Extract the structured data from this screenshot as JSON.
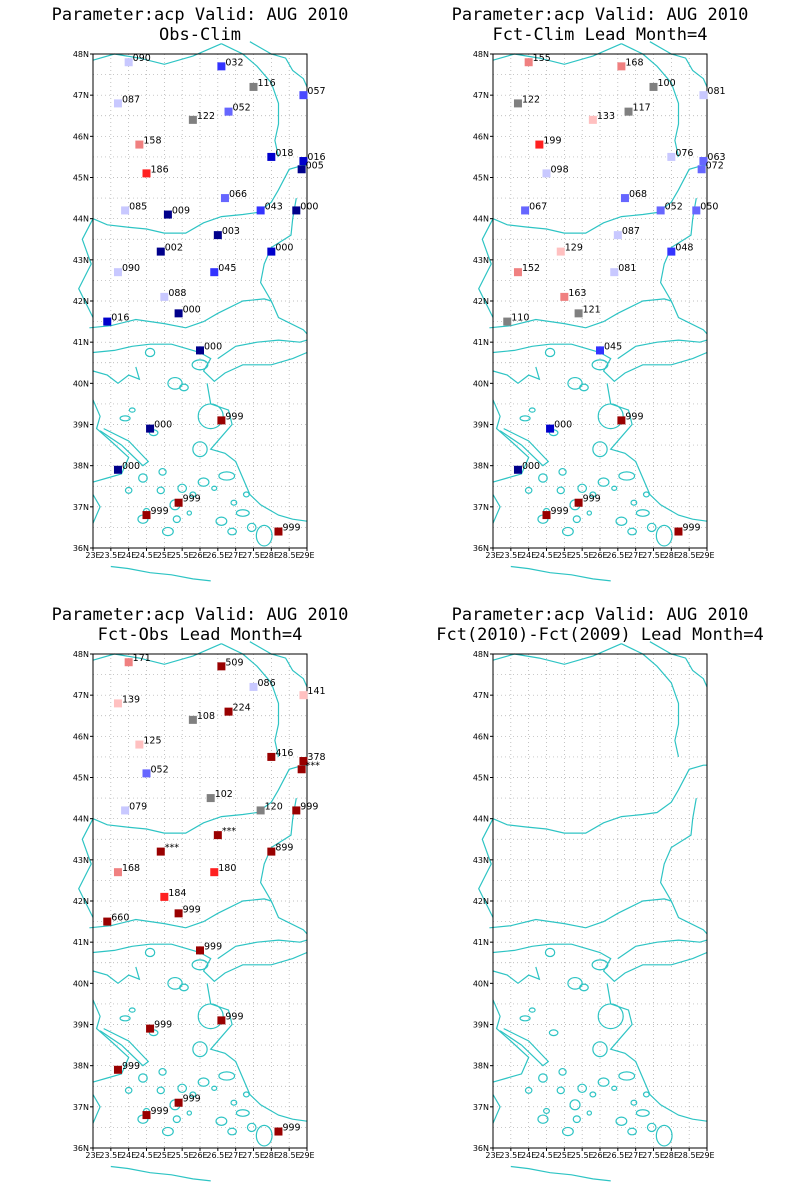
{
  "axes": {
    "lon_ticks": [
      "23E",
      "23.5E",
      "24E",
      "24.5E",
      "25E",
      "25.5E",
      "26E",
      "26.5E",
      "27E",
      "27.5E",
      "28E",
      "28.5E",
      "29E"
    ],
    "lat_ticks": [
      "36N",
      "37N",
      "38N",
      "39N",
      "40N",
      "41N",
      "42N",
      "43N",
      "44N",
      "45N",
      "46N",
      "47N",
      "48N"
    ]
  },
  "colors": {
    "coast": "#2ec4c4",
    "grid": "#aaaaaa"
  },
  "panels": [
    {
      "id": "obs-clim",
      "title1": "Parameter:acp Valid: AUG 2010",
      "title2": "Obs-Clim",
      "points": [
        {
          "lon": 24.0,
          "lat": 47.8,
          "label": "090",
          "color": "#c8c8ff"
        },
        {
          "lon": 26.6,
          "lat": 47.7,
          "label": "032",
          "color": "#3333ff"
        },
        {
          "lon": 27.5,
          "lat": 47.2,
          "label": "116",
          "color": "#808080"
        },
        {
          "lon": 28.9,
          "lat": 47.0,
          "label": "057",
          "color": "#4a4aff"
        },
        {
          "lon": 23.7,
          "lat": 46.8,
          "label": "087",
          "color": "#c8c8ff"
        },
        {
          "lon": 25.8,
          "lat": 46.4,
          "label": "122",
          "color": "#808080"
        },
        {
          "lon": 26.8,
          "lat": 46.6,
          "label": "052",
          "color": "#6666ff"
        },
        {
          "lon": 24.3,
          "lat": 45.8,
          "label": "158",
          "color": "#f08080"
        },
        {
          "lon": 28.0,
          "lat": 45.5,
          "label": "018",
          "color": "#0000cc"
        },
        {
          "lon": 28.9,
          "lat": 45.4,
          "label": "016",
          "color": "#0000cc"
        },
        {
          "lon": 28.85,
          "lat": 45.2,
          "label": "005",
          "color": "#00008b"
        },
        {
          "lon": 24.5,
          "lat": 45.1,
          "label": "186",
          "color": "#ff2020"
        },
        {
          "lon": 26.7,
          "lat": 44.5,
          "label": "066",
          "color": "#6666ff"
        },
        {
          "lon": 23.9,
          "lat": 44.2,
          "label": "085",
          "color": "#c8c8ff"
        },
        {
          "lon": 25.1,
          "lat": 44.1,
          "label": "009",
          "color": "#00008b"
        },
        {
          "lon": 27.7,
          "lat": 44.2,
          "label": "043",
          "color": "#3333ff"
        },
        {
          "lon": 28.7,
          "lat": 44.2,
          "label": "000",
          "color": "#00008b"
        },
        {
          "lon": 26.5,
          "lat": 43.6,
          "label": "003",
          "color": "#00008b"
        },
        {
          "lon": 24.9,
          "lat": 43.2,
          "label": "002",
          "color": "#00008b"
        },
        {
          "lon": 28.0,
          "lat": 43.2,
          "label": "000",
          "color": "#0000cc"
        },
        {
          "lon": 23.7,
          "lat": 42.7,
          "label": "090",
          "color": "#c8c8ff"
        },
        {
          "lon": 26.4,
          "lat": 42.7,
          "label": "045",
          "color": "#3333ff"
        },
        {
          "lon": 25.0,
          "lat": 42.1,
          "label": "088",
          "color": "#c8c8ff"
        },
        {
          "lon": 25.4,
          "lat": 41.7,
          "label": "000",
          "color": "#00008b"
        },
        {
          "lon": 23.4,
          "lat": 41.5,
          "label": "016",
          "color": "#0000cc"
        },
        {
          "lon": 26.0,
          "lat": 40.8,
          "label": "000",
          "color": "#00008b"
        },
        {
          "lon": 26.6,
          "lat": 39.1,
          "label": "999",
          "color": "#990000"
        },
        {
          "lon": 24.6,
          "lat": 38.9,
          "label": "000",
          "color": "#00008b"
        },
        {
          "lon": 23.7,
          "lat": 37.9,
          "label": "000",
          "color": "#00008b"
        },
        {
          "lon": 25.4,
          "lat": 37.1,
          "label": "999",
          "color": "#990000"
        },
        {
          "lon": 24.5,
          "lat": 36.8,
          "label": "999",
          "color": "#990000"
        },
        {
          "lon": 28.2,
          "lat": 36.4,
          "label": "999",
          "color": "#990000"
        }
      ]
    },
    {
      "id": "fct-clim",
      "title1": "Parameter:acp Valid: AUG 2010",
      "title2": "Fct-Clim Lead Month=4",
      "points": [
        {
          "lon": 24.0,
          "lat": 47.8,
          "label": "155",
          "color": "#f08080"
        },
        {
          "lon": 26.6,
          "lat": 47.7,
          "label": "168",
          "color": "#f08080"
        },
        {
          "lon": 27.5,
          "lat": 47.2,
          "label": "100",
          "color": "#808080"
        },
        {
          "lon": 28.9,
          "lat": 47.0,
          "label": "081",
          "color": "#c8c8ff"
        },
        {
          "lon": 23.7,
          "lat": 46.8,
          "label": "122",
          "color": "#808080"
        },
        {
          "lon": 25.8,
          "lat": 46.4,
          "label": "133",
          "color": "#ffc0c0"
        },
        {
          "lon": 26.8,
          "lat": 46.6,
          "label": "117",
          "color": "#808080"
        },
        {
          "lon": 24.3,
          "lat": 45.8,
          "label": "199",
          "color": "#ff2020"
        },
        {
          "lon": 28.0,
          "lat": 45.5,
          "label": "076",
          "color": "#c8c8ff"
        },
        {
          "lon": 28.9,
          "lat": 45.4,
          "label": "063",
          "color": "#6666ff"
        },
        {
          "lon": 28.85,
          "lat": 45.2,
          "label": "072",
          "color": "#6666ff"
        },
        {
          "lon": 24.5,
          "lat": 45.1,
          "label": "098",
          "color": "#c8c8ff"
        },
        {
          "lon": 26.7,
          "lat": 44.5,
          "label": "068",
          "color": "#6666ff"
        },
        {
          "lon": 23.9,
          "lat": 44.2,
          "label": "067",
          "color": "#6666ff"
        },
        {
          "lon": 27.7,
          "lat": 44.2,
          "label": "052",
          "color": "#6666ff"
        },
        {
          "lon": 28.7,
          "lat": 44.2,
          "label": "050",
          "color": "#6666ff"
        },
        {
          "lon": 26.5,
          "lat": 43.6,
          "label": "087",
          "color": "#c8c8ff"
        },
        {
          "lon": 24.9,
          "lat": 43.2,
          "label": "129",
          "color": "#ffc0c0"
        },
        {
          "lon": 28.0,
          "lat": 43.2,
          "label": "048",
          "color": "#3333ff"
        },
        {
          "lon": 23.7,
          "lat": 42.7,
          "label": "152",
          "color": "#f08080"
        },
        {
          "lon": 26.4,
          "lat": 42.7,
          "label": "081",
          "color": "#c8c8ff"
        },
        {
          "lon": 25.0,
          "lat": 42.1,
          "label": "163",
          "color": "#f08080"
        },
        {
          "lon": 25.4,
          "lat": 41.7,
          "label": "121",
          "color": "#808080"
        },
        {
          "lon": 23.4,
          "lat": 41.5,
          "label": "110",
          "color": "#808080"
        },
        {
          "lon": 26.0,
          "lat": 40.8,
          "label": "045",
          "color": "#3333ff"
        },
        {
          "lon": 26.6,
          "lat": 39.1,
          "label": "999",
          "color": "#990000"
        },
        {
          "lon": 24.6,
          "lat": 38.9,
          "label": "000",
          "color": "#0000cc"
        },
        {
          "lon": 23.7,
          "lat": 37.9,
          "label": "000",
          "color": "#00008b"
        },
        {
          "lon": 25.4,
          "lat": 37.1,
          "label": "999",
          "color": "#990000"
        },
        {
          "lon": 24.5,
          "lat": 36.8,
          "label": "999",
          "color": "#990000"
        },
        {
          "lon": 28.2,
          "lat": 36.4,
          "label": "999",
          "color": "#990000"
        }
      ]
    },
    {
      "id": "fct-obs",
      "title1": "Parameter:acp Valid: AUG 2010",
      "title2": "Fct-Obs Lead Month=4",
      "points": [
        {
          "lon": 24.0,
          "lat": 47.8,
          "label": "171",
          "color": "#f08080"
        },
        {
          "lon": 26.6,
          "lat": 47.7,
          "label": "509",
          "color": "#990000"
        },
        {
          "lon": 27.5,
          "lat": 47.2,
          "label": "086",
          "color": "#c8c8ff"
        },
        {
          "lon": 28.9,
          "lat": 47.0,
          "label": "141",
          "color": "#ffc0c0"
        },
        {
          "lon": 23.7,
          "lat": 46.8,
          "label": "139",
          "color": "#ffc0c0"
        },
        {
          "lon": 25.8,
          "lat": 46.4,
          "label": "108",
          "color": "#808080"
        },
        {
          "lon": 26.8,
          "lat": 46.6,
          "label": "224",
          "color": "#990000"
        },
        {
          "lon": 24.3,
          "lat": 45.8,
          "label": "125",
          "color": "#ffc0c0"
        },
        {
          "lon": 28.0,
          "lat": 45.5,
          "label": "416",
          "color": "#990000"
        },
        {
          "lon": 28.9,
          "lat": 45.4,
          "label": "378",
          "color": "#990000"
        },
        {
          "lon": 28.85,
          "lat": 45.2,
          "label": "***",
          "color": "#990000"
        },
        {
          "lon": 24.5,
          "lat": 45.1,
          "label": "052",
          "color": "#6666ff"
        },
        {
          "lon": 26.3,
          "lat": 44.5,
          "label": "102",
          "color": "#808080"
        },
        {
          "lon": 23.9,
          "lat": 44.2,
          "label": "079",
          "color": "#c8c8ff"
        },
        {
          "lon": 27.7,
          "lat": 44.2,
          "label": "120",
          "color": "#808080"
        },
        {
          "lon": 28.7,
          "lat": 44.2,
          "label": "999",
          "color": "#990000"
        },
        {
          "lon": 26.5,
          "lat": 43.6,
          "label": "***",
          "color": "#990000"
        },
        {
          "lon": 24.9,
          "lat": 43.2,
          "label": "***",
          "color": "#990000"
        },
        {
          "lon": 28.0,
          "lat": 43.2,
          "label": "899",
          "color": "#990000"
        },
        {
          "lon": 23.7,
          "lat": 42.7,
          "label": "168",
          "color": "#f08080"
        },
        {
          "lon": 26.4,
          "lat": 42.7,
          "label": "180",
          "color": "#ff2020"
        },
        {
          "lon": 25.0,
          "lat": 42.1,
          "label": "184",
          "color": "#ff2020"
        },
        {
          "lon": 25.4,
          "lat": 41.7,
          "label": "999",
          "color": "#990000"
        },
        {
          "lon": 23.4,
          "lat": 41.5,
          "label": "660",
          "color": "#990000"
        },
        {
          "lon": 26.0,
          "lat": 40.8,
          "label": "999",
          "color": "#990000"
        },
        {
          "lon": 26.6,
          "lat": 39.1,
          "label": "999",
          "color": "#990000"
        },
        {
          "lon": 24.6,
          "lat": 38.9,
          "label": "999",
          "color": "#990000"
        },
        {
          "lon": 23.7,
          "lat": 37.9,
          "label": "999",
          "color": "#990000"
        },
        {
          "lon": 25.4,
          "lat": 37.1,
          "label": "999",
          "color": "#990000"
        },
        {
          "lon": 24.5,
          "lat": 36.8,
          "label": "999",
          "color": "#990000"
        },
        {
          "lon": 28.2,
          "lat": 36.4,
          "label": "999",
          "color": "#990000"
        }
      ]
    },
    {
      "id": "fct2010-fct2009",
      "title1": "Parameter:acp Valid: AUG 2010",
      "title2": "Fct(2010)-Fct(2009) Lead Month=4",
      "points": []
    }
  ]
}
